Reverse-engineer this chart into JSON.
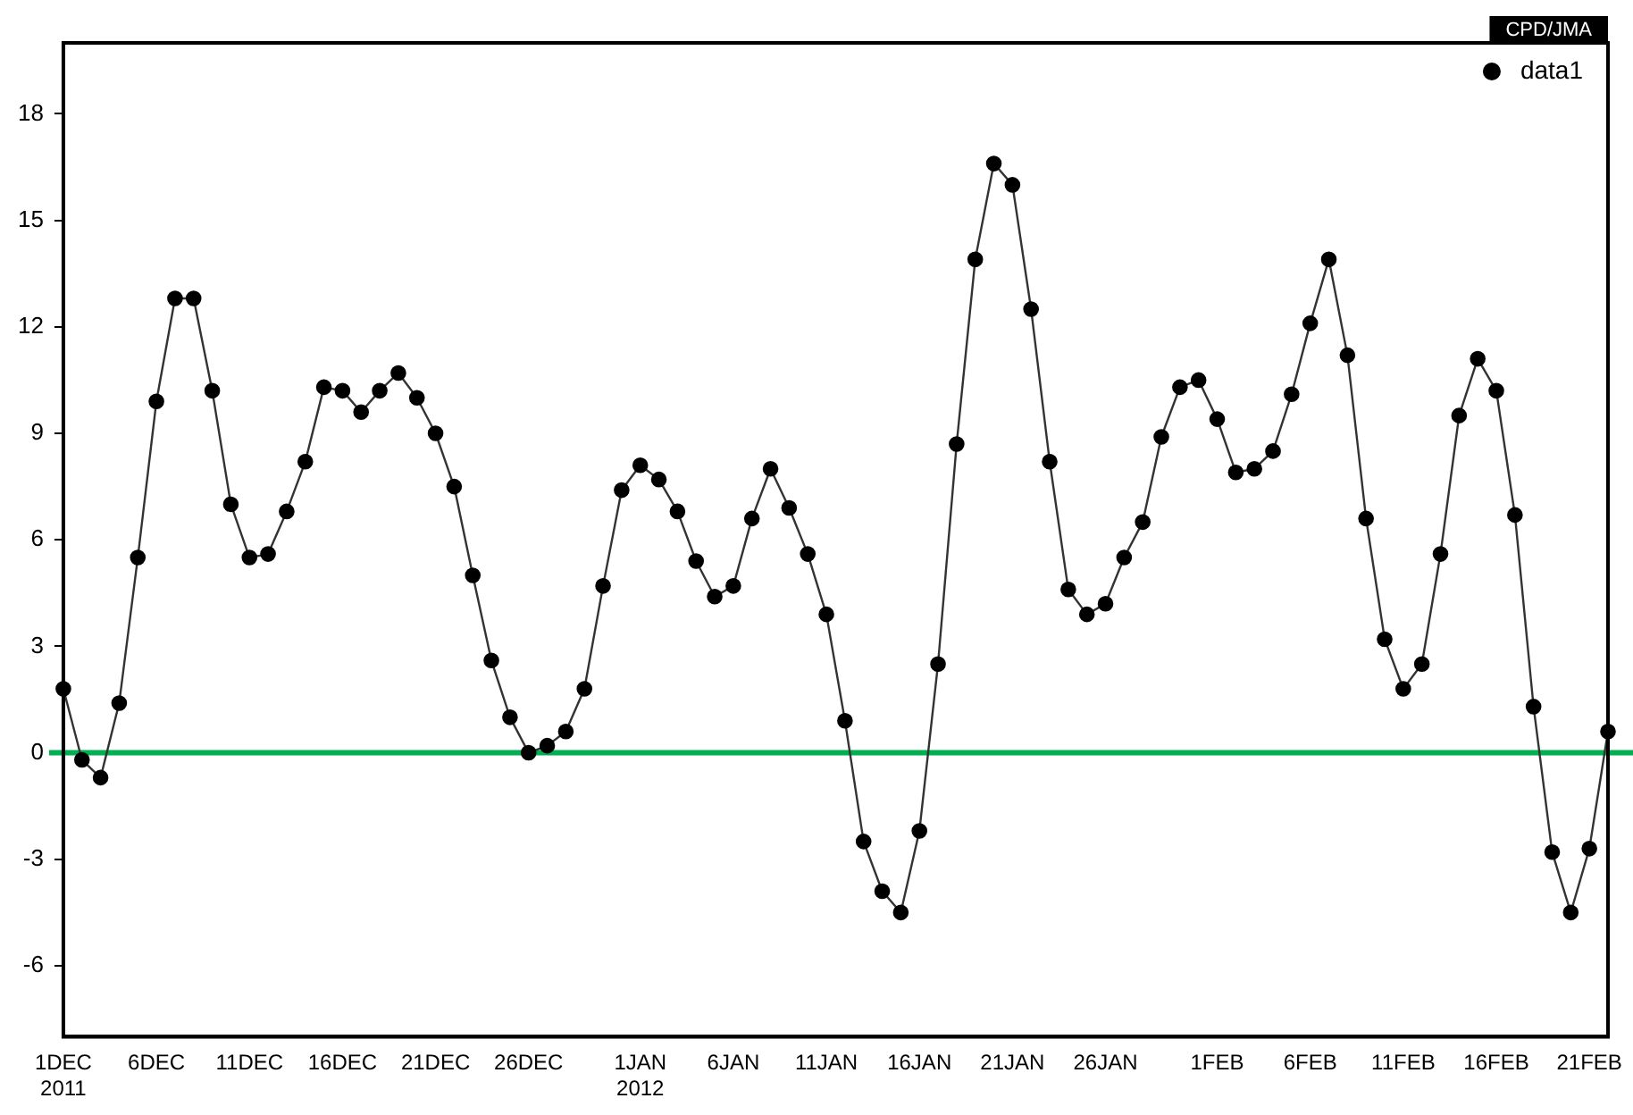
{
  "chart_data": {
    "type": "line",
    "annotations": [
      "CPD/JMA"
    ],
    "x": [
      "2011-12-01",
      "2011-12-02",
      "2011-12-03",
      "2011-12-04",
      "2011-12-05",
      "2011-12-06",
      "2011-12-07",
      "2011-12-08",
      "2011-12-09",
      "2011-12-10",
      "2011-12-11",
      "2011-12-12",
      "2011-12-13",
      "2011-12-14",
      "2011-12-15",
      "2011-12-16",
      "2011-12-17",
      "2011-12-18",
      "2011-12-19",
      "2011-12-20",
      "2011-12-21",
      "2011-12-22",
      "2011-12-23",
      "2011-12-24",
      "2011-12-25",
      "2011-12-26",
      "2011-12-27",
      "2011-12-28",
      "2011-12-29",
      "2011-12-30",
      "2011-12-31",
      "2012-01-01",
      "2012-01-02",
      "2012-01-03",
      "2012-01-04",
      "2012-01-05",
      "2012-01-06",
      "2012-01-07",
      "2012-01-08",
      "2012-01-09",
      "2012-01-10",
      "2012-01-11",
      "2012-01-12",
      "2012-01-13",
      "2012-01-14",
      "2012-01-15",
      "2012-01-16",
      "2012-01-17",
      "2012-01-18",
      "2012-01-19",
      "2012-01-20",
      "2012-01-21",
      "2012-01-22",
      "2012-01-23",
      "2012-01-24",
      "2012-01-25",
      "2012-01-26",
      "2012-01-27",
      "2012-01-28",
      "2012-01-29",
      "2012-01-30",
      "2012-01-31",
      "2012-02-01",
      "2012-02-02",
      "2012-02-03",
      "2012-02-04",
      "2012-02-05",
      "2012-02-06",
      "2012-02-07",
      "2012-02-08",
      "2012-02-09",
      "2012-02-10",
      "2012-02-11",
      "2012-02-12",
      "2012-02-13",
      "2012-02-14",
      "2012-02-15",
      "2012-02-16",
      "2012-02-17",
      "2012-02-18",
      "2012-02-19",
      "2012-02-20",
      "2012-02-21",
      "2012-02-22"
    ],
    "series": [
      {
        "name": "data1",
        "color": "#000000",
        "values": [
          1.8,
          -0.2,
          -0.7,
          1.4,
          5.5,
          9.9,
          12.8,
          12.8,
          10.2,
          7.0,
          5.5,
          5.6,
          6.8,
          8.2,
          10.3,
          10.2,
          9.6,
          10.2,
          10.7,
          10.0,
          9.0,
          7.5,
          5.0,
          2.6,
          1.0,
          0.0,
          0.2,
          0.6,
          1.8,
          4.7,
          7.4,
          8.1,
          7.7,
          6.8,
          5.4,
          4.4,
          4.7,
          6.6,
          8.0,
          6.9,
          5.6,
          3.9,
          0.9,
          -2.5,
          -3.9,
          -4.5,
          -2.2,
          2.5,
          8.7,
          13.9,
          16.6,
          16.0,
          12.5,
          8.2,
          4.6,
          3.9,
          4.2,
          5.5,
          6.5,
          8.9,
          10.3,
          10.5,
          9.4,
          7.9,
          8.0,
          8.5,
          10.1,
          12.1,
          13.9,
          11.2,
          6.6,
          3.2,
          1.8,
          2.5,
          5.6,
          9.5,
          11.1,
          10.2,
          6.7,
          1.3,
          -2.8,
          -4.5,
          -2.7,
          0.6
        ]
      }
    ],
    "xlim": [
      "2011-12-01",
      "2012-02-22"
    ],
    "xticks": [
      {
        "value": "2011-12-01",
        "label": "1DEC 2011"
      },
      {
        "value": "2011-12-06",
        "label": "6DEC"
      },
      {
        "value": "2011-12-11",
        "label": "11DEC"
      },
      {
        "value": "2011-12-16",
        "label": "16DEC"
      },
      {
        "value": "2011-12-21",
        "label": "21DEC"
      },
      {
        "value": "2011-12-26",
        "label": "26DEC"
      },
      {
        "value": "2012-01-01",
        "label": "1JAN 2012"
      },
      {
        "value": "2012-01-06",
        "label": "6JAN"
      },
      {
        "value": "2012-01-11",
        "label": "11JAN"
      },
      {
        "value": "2012-01-16",
        "label": "16JAN"
      },
      {
        "value": "2012-01-21",
        "label": "21JAN"
      },
      {
        "value": "2012-01-26",
        "label": "26JAN"
      },
      {
        "value": "2012-02-01",
        "label": "1FEB"
      },
      {
        "value": "2012-02-06",
        "label": "6FEB"
      },
      {
        "value": "2012-02-11",
        "label": "11FEB"
      },
      {
        "value": "2012-02-16",
        "label": "16FEB"
      },
      {
        "value": "2012-02-21",
        "label": "21FEB"
      }
    ],
    "ylim": [
      -8,
      20
    ],
    "yticks": [
      -6,
      -3,
      0,
      3,
      6,
      9,
      12,
      15,
      18
    ],
    "ref_lines": [
      {
        "axis": "y",
        "value": 0,
        "color": "#00b050"
      }
    ],
    "grid": false,
    "legend": "top right",
    "marker": "circle",
    "line_style": "solid"
  }
}
